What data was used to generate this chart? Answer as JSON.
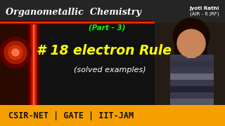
{
  "bg_color": "#1c1c1c",
  "title_text": "Organometallic  Chemistry",
  "title_color": "#ffffff",
  "part_text": "(Part - 3)",
  "part_color": "#00ff00",
  "main_text": "# 18 electron Rule",
  "main_color": "#ffff00",
  "sub_text": "(solved examples)",
  "sub_color": "#ffffff",
  "name_line1": "Jyoti Rathi",
  "name_line2": "(AIR - 6 JRF)",
  "name_color": "#ffffff",
  "footer_text": "CSIR-NET | GATE | IIT-JAM",
  "footer_bg": "#f5a000",
  "footer_color": "#111111",
  "left_panel_color": "#2a0a00",
  "red_glow_1": "#cc1100",
  "red_glow_2": "#ff3300",
  "red_glow_3": "#ffaa66",
  "red_bar": "#cc2200",
  "photo_bg": "#3a2a1a",
  "face_color": "#c8855a",
  "hair_color": "#1a0800",
  "shirt_dark": "#3a3a4a",
  "shirt_light": "#888888"
}
